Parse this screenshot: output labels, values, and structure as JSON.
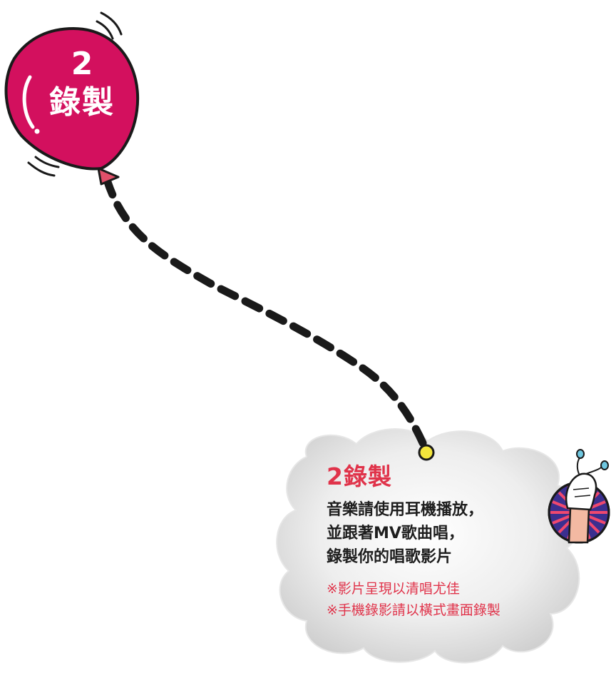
{
  "balloon": {
    "number": "2",
    "label": "錄製",
    "color": "#d3105e"
  },
  "card": {
    "title": "2錄製",
    "instructions": [
      "音樂請使用耳機播放，",
      "並跟著MV歌曲唱，",
      "錄製你的唱歌影片"
    ],
    "notes": [
      "※影片呈現以清唱尤佳",
      "※手機錄影請以橫式畫面錄製"
    ],
    "title_color": "#e0334a",
    "note_color": "#e0334a"
  },
  "icons": {
    "balloon": "balloon-icon",
    "string": "dashed-string",
    "pin": "pin-icon",
    "cloud": "cloud-shape",
    "earphones": "hand-holding-earphones-icon"
  }
}
